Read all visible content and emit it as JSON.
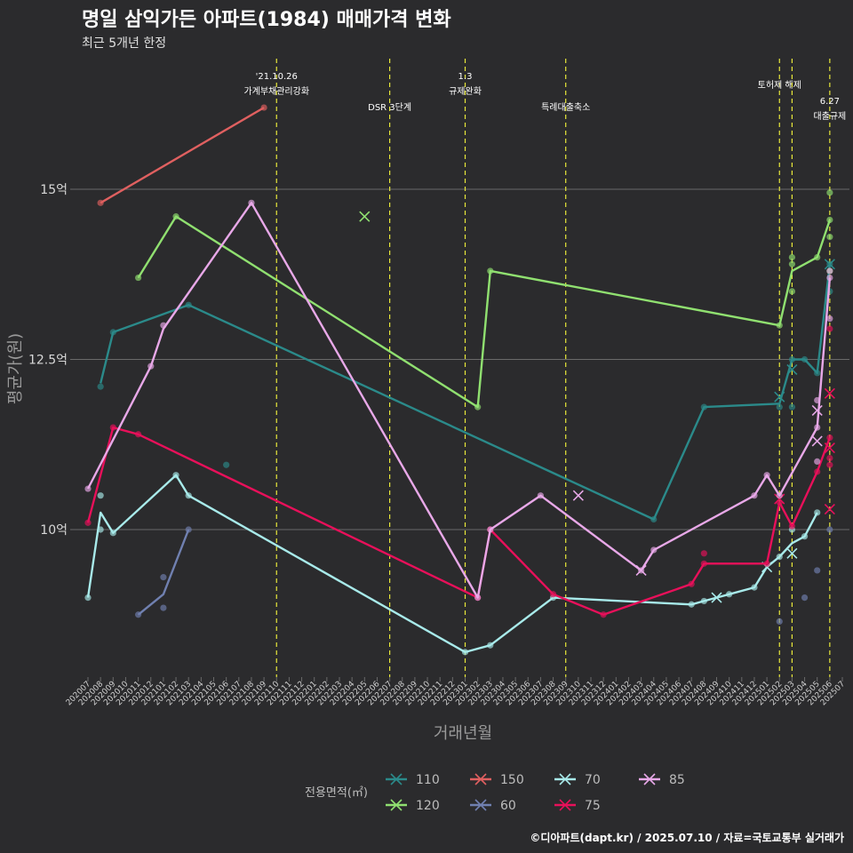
{
  "chart_data": {
    "type": "line",
    "title": "명일 삼익가든 아파트(1984) 매매가격 변화",
    "subtitle": "최근 5개년 한정",
    "xlabel": "거래년월",
    "ylabel": "평균가(원)",
    "caption": "©디아파트(dapt.kr) / 2025.07.10 / 자료=국토교통부 실거래가",
    "legend_title": "전용면적(㎡)",
    "x_categories": [
      "202007",
      "202008",
      "202009",
      "202010",
      "202011",
      "202012",
      "202101",
      "202102",
      "202103",
      "202104",
      "202105",
      "202106",
      "202107",
      "202108",
      "202109",
      "202110",
      "202111",
      "202112",
      "202201",
      "202202",
      "202203",
      "202204",
      "202205",
      "202206",
      "202207",
      "202208",
      "202209",
      "202210",
      "202211",
      "202212",
      "202301",
      "202302",
      "202303",
      "202304",
      "202305",
      "202306",
      "202307",
      "202308",
      "202309",
      "202310",
      "202311",
      "202312",
      "202401",
      "202402",
      "202403",
      "202404",
      "202405",
      "202406",
      "202407",
      "202408",
      "202409",
      "202410",
      "202411",
      "202412",
      "202501",
      "202502",
      "202503",
      "202504",
      "202505",
      "202506",
      "202507"
    ],
    "y_ticks": [
      {
        "value": 10,
        "label": "10억"
      },
      {
        "value": 12.5,
        "label": "12.5억"
      },
      {
        "value": 15,
        "label": "15억"
      }
    ],
    "ylim": [
      7.9,
      16.9
    ],
    "grid": true,
    "legend_position": "bottom",
    "events": [
      {
        "month": "202110",
        "lines": [
          "'21.10.26",
          "가계부채관리강화"
        ],
        "y": 89
      },
      {
        "month": "202207",
        "lines": [
          "DSR 3단계"
        ],
        "y": 124
      },
      {
        "month": "202301",
        "lines": [
          "1.3",
          "규제완화"
        ],
        "y": 89
      },
      {
        "month": "202309",
        "lines": [
          "특례대출축소"
        ],
        "y": 124
      },
      {
        "month": "202502",
        "lines": [
          "토허제 해제"
        ],
        "y": 99
      },
      {
        "month": "202503",
        "lines": [],
        "y": 99
      },
      {
        "month": "202506",
        "lines": [
          "6.27",
          "대출규제"
        ],
        "y": 117
      }
    ],
    "series": [
      {
        "name": "110",
        "color": "#2b8a8a",
        "line": [
          [
            "202008",
            12.15
          ],
          [
            "202009",
            12.9
          ],
          [
            "202103",
            13.3
          ],
          [
            "202404",
            10.15
          ],
          [
            "202408",
            11.8
          ],
          [
            "202502",
            11.85
          ],
          [
            "202503",
            12.5
          ],
          [
            "202504",
            12.5
          ],
          [
            "202505",
            12.3
          ],
          [
            "202506",
            13.9
          ]
        ],
        "points": [
          [
            "202008",
            12.1
          ],
          [
            "202009",
            12.9
          ],
          [
            "202103",
            13.3
          ],
          [
            "202106",
            10.95
          ],
          [
            "202404",
            10.15
          ],
          [
            "202408",
            11.8
          ],
          [
            "202502",
            11.8
          ],
          [
            "202503",
            11.8
          ],
          [
            "202503",
            12.5
          ],
          [
            "202504",
            12.5
          ],
          [
            "202505",
            12.3
          ],
          [
            "202506",
            13.9
          ],
          [
            "202506",
            13.5
          ]
        ],
        "crosses": [
          [
            "202502",
            11.95
          ],
          [
            "202503",
            12.35
          ],
          [
            "202506",
            13.9
          ]
        ]
      },
      {
        "name": "120",
        "color": "#90e070",
        "line": [
          [
            "202011",
            13.7
          ],
          [
            "202102",
            14.6
          ],
          [
            "202302",
            11.8
          ],
          [
            "202303",
            13.8
          ],
          [
            "202502",
            13.0
          ],
          [
            "202503",
            13.8
          ],
          [
            "202505",
            14.0
          ],
          [
            "202506",
            14.55
          ]
        ],
        "points": [
          [
            "202011",
            13.7
          ],
          [
            "202102",
            14.6
          ],
          [
            "202302",
            11.8
          ],
          [
            "202303",
            13.8
          ],
          [
            "202502",
            13.0
          ],
          [
            "202503",
            14.0
          ],
          [
            "202503",
            13.9
          ],
          [
            "202503",
            13.5
          ],
          [
            "202505",
            14.0
          ],
          [
            "202506",
            14.95
          ],
          [
            "202506",
            14.55
          ],
          [
            "202506",
            14.3
          ],
          [
            "202506",
            13.8
          ]
        ],
        "crosses": [
          [
            "202205",
            14.6
          ]
        ]
      },
      {
        "name": "150",
        "color": "#e06060",
        "line": [
          [
            "202008",
            14.8
          ],
          [
            "202109",
            16.2
          ]
        ],
        "points": [
          [
            "202008",
            14.8
          ],
          [
            "202109",
            16.2
          ]
        ],
        "crosses": []
      },
      {
        "name": "60",
        "color": "#7080b0",
        "line": [
          [
            "202011",
            8.75
          ],
          [
            "202101",
            9.05
          ],
          [
            "202103",
            10.0
          ]
        ],
        "points": [
          [
            "202011",
            8.75
          ],
          [
            "202101",
            9.3
          ],
          [
            "202101",
            8.85
          ],
          [
            "202103",
            10.0
          ],
          [
            "202502",
            8.65
          ],
          [
            "202504",
            9.0
          ],
          [
            "202505",
            9.4
          ],
          [
            "202506",
            10.0
          ]
        ],
        "crosses": []
      },
      {
        "name": "70",
        "color": "#a8eaea",
        "line": [
          [
            "202007",
            9.0
          ],
          [
            "202008",
            10.25
          ],
          [
            "202009",
            9.95
          ],
          [
            "202102",
            10.8
          ],
          [
            "202103",
            10.5
          ],
          [
            "202301",
            8.2
          ],
          [
            "202303",
            8.3
          ],
          [
            "202308",
            9.0
          ],
          [
            "202407",
            8.9
          ],
          [
            "202408",
            8.95
          ],
          [
            "202409",
            9.0
          ],
          [
            "202410",
            9.05
          ],
          [
            "202412",
            9.15
          ],
          [
            "202501",
            9.45
          ],
          [
            "202502",
            9.6
          ],
          [
            "202503",
            9.8
          ],
          [
            "202504",
            9.9
          ],
          [
            "202505",
            10.25
          ]
        ],
        "points": [
          [
            "202007",
            9.0
          ],
          [
            "202008",
            10.5
          ],
          [
            "202008",
            10.0
          ],
          [
            "202009",
            9.95
          ],
          [
            "202102",
            10.8
          ],
          [
            "202103",
            10.5
          ],
          [
            "202301",
            8.2
          ],
          [
            "202303",
            8.3
          ],
          [
            "202308",
            9.0
          ],
          [
            "202407",
            8.9
          ],
          [
            "202408",
            8.95
          ],
          [
            "202410",
            9.05
          ],
          [
            "202412",
            9.15
          ],
          [
            "202502",
            9.6
          ],
          [
            "202503",
            10.0
          ],
          [
            "202504",
            9.9
          ],
          [
            "202505",
            10.25
          ]
        ],
        "crosses": [
          [
            "202409",
            9.0
          ],
          [
            "202501",
            9.45
          ],
          [
            "202503",
            9.65
          ]
        ]
      },
      {
        "name": "75",
        "color": "#e8105a",
        "line": [
          [
            "202007",
            10.1
          ],
          [
            "202009",
            11.5
          ],
          [
            "202011",
            11.4
          ],
          [
            "202302",
            9.0
          ],
          [
            "202303",
            10.0
          ],
          [
            "202308",
            9.05
          ],
          [
            "202312",
            8.75
          ],
          [
            "202407",
            9.2
          ],
          [
            "202408",
            9.5
          ],
          [
            "202501",
            9.5
          ],
          [
            "202502",
            10.4
          ],
          [
            "202503",
            10.05
          ],
          [
            "202505",
            10.85
          ],
          [
            "202506",
            11.35
          ]
        ],
        "points": [
          [
            "202007",
            10.1
          ],
          [
            "202009",
            11.5
          ],
          [
            "202011",
            11.4
          ],
          [
            "202302",
            9.0
          ],
          [
            "202303",
            10.0
          ],
          [
            "202308",
            9.05
          ],
          [
            "202312",
            8.75
          ],
          [
            "202407",
            9.2
          ],
          [
            "202408",
            9.5
          ],
          [
            "202408",
            9.65
          ],
          [
            "202501",
            9.5
          ],
          [
            "202502",
            10.4
          ],
          [
            "202503",
            10.05
          ],
          [
            "202505",
            10.85
          ],
          [
            "202506",
            11.35
          ],
          [
            "202506",
            12.95
          ],
          [
            "202506",
            11.05
          ],
          [
            "202506",
            10.95
          ]
        ],
        "crosses": [
          [
            "202502",
            10.45
          ],
          [
            "202506",
            12.0
          ],
          [
            "202506",
            11.2
          ],
          [
            "202506",
            10.3
          ]
        ]
      },
      {
        "name": "85",
        "color": "#e8a8e8",
        "line": [
          [
            "202007",
            10.6
          ],
          [
            "202012",
            12.4
          ],
          [
            "202101",
            12.95
          ],
          [
            "202108",
            14.8
          ],
          [
            "202302",
            9.0
          ],
          [
            "202303",
            10.0
          ],
          [
            "202307",
            10.5
          ],
          [
            "202403",
            9.4
          ],
          [
            "202404",
            9.7
          ],
          [
            "202412",
            10.5
          ],
          [
            "202501",
            10.8
          ],
          [
            "202502",
            10.5
          ],
          [
            "202505",
            11.5
          ],
          [
            "202506",
            13.7
          ]
        ],
        "points": [
          [
            "202007",
            10.6
          ],
          [
            "202012",
            12.4
          ],
          [
            "202101",
            13.0
          ],
          [
            "202108",
            14.8
          ],
          [
            "202302",
            9.0
          ],
          [
            "202303",
            10.0
          ],
          [
            "202307",
            10.5
          ],
          [
            "202403",
            9.4
          ],
          [
            "202404",
            9.7
          ],
          [
            "202412",
            10.5
          ],
          [
            "202501",
            10.8
          ],
          [
            "202502",
            10.5
          ],
          [
            "202505",
            11.5
          ],
          [
            "202505",
            11.9
          ],
          [
            "202505",
            11.0
          ],
          [
            "202506",
            13.7
          ],
          [
            "202506",
            13.1
          ],
          [
            "202506",
            13.8
          ]
        ],
        "crosses": [
          [
            "202310",
            10.5
          ],
          [
            "202403",
            9.4
          ],
          [
            "202505",
            11.75
          ],
          [
            "202505",
            11.3
          ]
        ]
      }
    ]
  }
}
